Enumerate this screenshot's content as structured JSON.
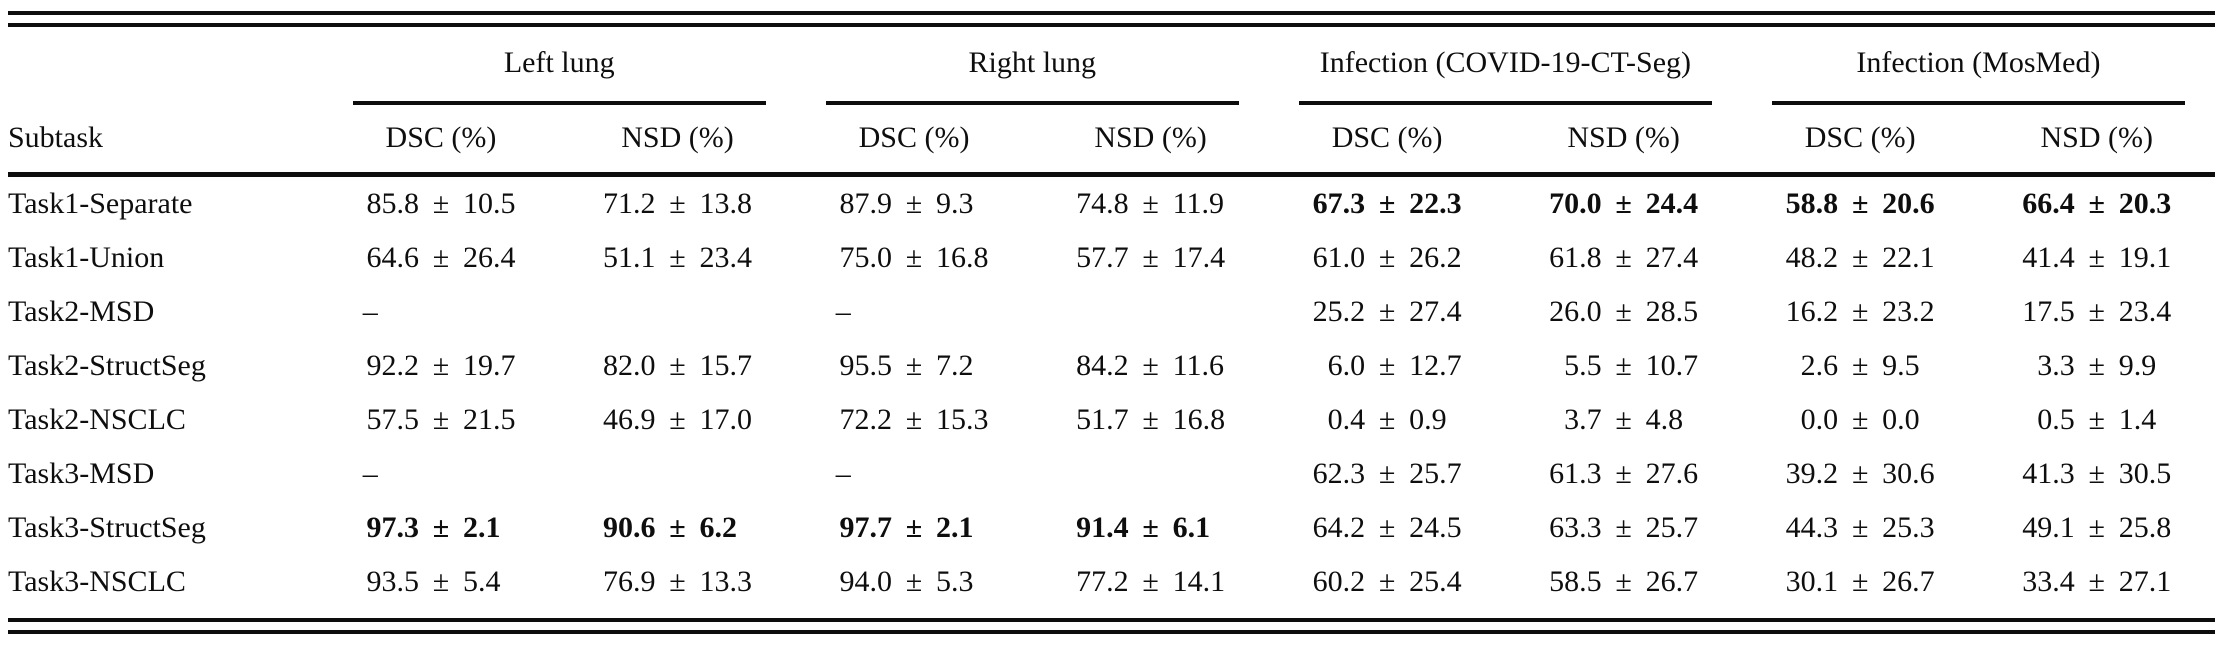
{
  "pm_sign": "±",
  "dash_sign": "–",
  "colors": {
    "text": "#0e0e0e",
    "rule": "#0d0d0d"
  },
  "header": {
    "subtask_label": "Subtask",
    "groups": [
      {
        "label": "Left lung",
        "sub": [
          "DSC (%)",
          "NSD (%)"
        ]
      },
      {
        "label": "Right lung",
        "sub": [
          "DSC (%)",
          "NSD (%)"
        ]
      },
      {
        "label": "Infection (COVID-19-CT-Seg)",
        "sub": [
          "DSC (%)",
          "NSD (%)"
        ]
      },
      {
        "label": "Infection (MosMed)",
        "sub": [
          "DSC (%)",
          "NSD (%)"
        ]
      }
    ]
  },
  "rows": [
    {
      "subtask": "Task1-Separate",
      "cells": [
        {
          "mean": "85.8",
          "std": "10.5",
          "bold": false
        },
        {
          "mean": "71.2",
          "std": "13.8",
          "bold": false
        },
        {
          "mean": "87.9",
          "std": "9.3",
          "bold": false
        },
        {
          "mean": "74.8",
          "std": "11.9",
          "bold": false
        },
        {
          "mean": "67.3",
          "std": "22.3",
          "bold": true
        },
        {
          "mean": "70.0",
          "std": "24.4",
          "bold": true
        },
        {
          "mean": "58.8",
          "std": "20.6",
          "bold": true
        },
        {
          "mean": "66.4",
          "std": "20.3",
          "bold": true
        }
      ]
    },
    {
      "subtask": "Task1-Union",
      "cells": [
        {
          "mean": "64.6",
          "std": "26.4",
          "bold": false
        },
        {
          "mean": "51.1",
          "std": "23.4",
          "bold": false
        },
        {
          "mean": "75.0",
          "std": "16.8",
          "bold": false
        },
        {
          "mean": "57.7",
          "std": "17.4",
          "bold": false
        },
        {
          "mean": "61.0",
          "std": "26.2",
          "bold": false
        },
        {
          "mean": "61.8",
          "std": "27.4",
          "bold": false
        },
        {
          "mean": "48.2",
          "std": "22.1",
          "bold": false
        },
        {
          "mean": "41.4",
          "std": "19.1",
          "bold": false
        }
      ]
    },
    {
      "subtask": "Task2-MSD",
      "cells": [
        {
          "dash": true
        },
        {
          "empty": true
        },
        {
          "dash": true
        },
        {
          "empty": true
        },
        {
          "mean": "25.2",
          "std": "27.4",
          "bold": false
        },
        {
          "mean": "26.0",
          "std": "28.5",
          "bold": false
        },
        {
          "mean": "16.2",
          "std": "23.2",
          "bold": false
        },
        {
          "mean": "17.5",
          "std": "23.4",
          "bold": false
        }
      ]
    },
    {
      "subtask": "Task2-StructSeg",
      "cells": [
        {
          "mean": "92.2",
          "std": "19.7",
          "bold": false
        },
        {
          "mean": "82.0",
          "std": "15.7",
          "bold": false
        },
        {
          "mean": "95.5",
          "std": "7.2",
          "bold": false
        },
        {
          "mean": "84.2",
          "std": "11.6",
          "bold": false
        },
        {
          "mean": "6.0",
          "std": "12.7",
          "bold": false
        },
        {
          "mean": "5.5",
          "std": "10.7",
          "bold": false
        },
        {
          "mean": "2.6",
          "std": "9.5",
          "bold": false
        },
        {
          "mean": "3.3",
          "std": "9.9",
          "bold": false
        }
      ]
    },
    {
      "subtask": "Task2-NSCLC",
      "cells": [
        {
          "mean": "57.5",
          "std": "21.5",
          "bold": false
        },
        {
          "mean": "46.9",
          "std": "17.0",
          "bold": false
        },
        {
          "mean": "72.2",
          "std": "15.3",
          "bold": false
        },
        {
          "mean": "51.7",
          "std": "16.8",
          "bold": false
        },
        {
          "mean": "0.4",
          "std": "0.9",
          "bold": false
        },
        {
          "mean": "3.7",
          "std": "4.8",
          "bold": false
        },
        {
          "mean": "0.0",
          "std": "0.0",
          "bold": false
        },
        {
          "mean": "0.5",
          "std": "1.4",
          "bold": false
        }
      ]
    },
    {
      "subtask": "Task3-MSD",
      "cells": [
        {
          "dash": true
        },
        {
          "empty": true
        },
        {
          "dash": true
        },
        {
          "empty": true
        },
        {
          "mean": "62.3",
          "std": "25.7",
          "bold": false
        },
        {
          "mean": "61.3",
          "std": "27.6",
          "bold": false
        },
        {
          "mean": "39.2",
          "std": "30.6",
          "bold": false
        },
        {
          "mean": "41.3",
          "std": "30.5",
          "bold": false
        }
      ]
    },
    {
      "subtask": "Task3-StructSeg",
      "cells": [
        {
          "mean": "97.3",
          "std": "2.1",
          "bold": true
        },
        {
          "mean": "90.6",
          "std": "6.2",
          "bold": true
        },
        {
          "mean": "97.7",
          "std": "2.1",
          "bold": true
        },
        {
          "mean": "91.4",
          "std": "6.1",
          "bold": true
        },
        {
          "mean": "64.2",
          "std": "24.5",
          "bold": false
        },
        {
          "mean": "63.3",
          "std": "25.7",
          "bold": false
        },
        {
          "mean": "44.3",
          "std": "25.3",
          "bold": false
        },
        {
          "mean": "49.1",
          "std": "25.8",
          "bold": false
        }
      ]
    },
    {
      "subtask": "Task3-NSCLC",
      "cells": [
        {
          "mean": "93.5",
          "std": "5.4",
          "bold": false
        },
        {
          "mean": "76.9",
          "std": "13.3",
          "bold": false
        },
        {
          "mean": "94.0",
          "std": "5.3",
          "bold": false
        },
        {
          "mean": "77.2",
          "std": "14.1",
          "bold": false
        },
        {
          "mean": "60.2",
          "std": "25.4",
          "bold": false
        },
        {
          "mean": "58.5",
          "std": "26.7",
          "bold": false
        },
        {
          "mean": "30.1",
          "std": "26.7",
          "bold": false
        },
        {
          "mean": "33.4",
          "std": "27.1",
          "bold": false
        }
      ]
    }
  ]
}
